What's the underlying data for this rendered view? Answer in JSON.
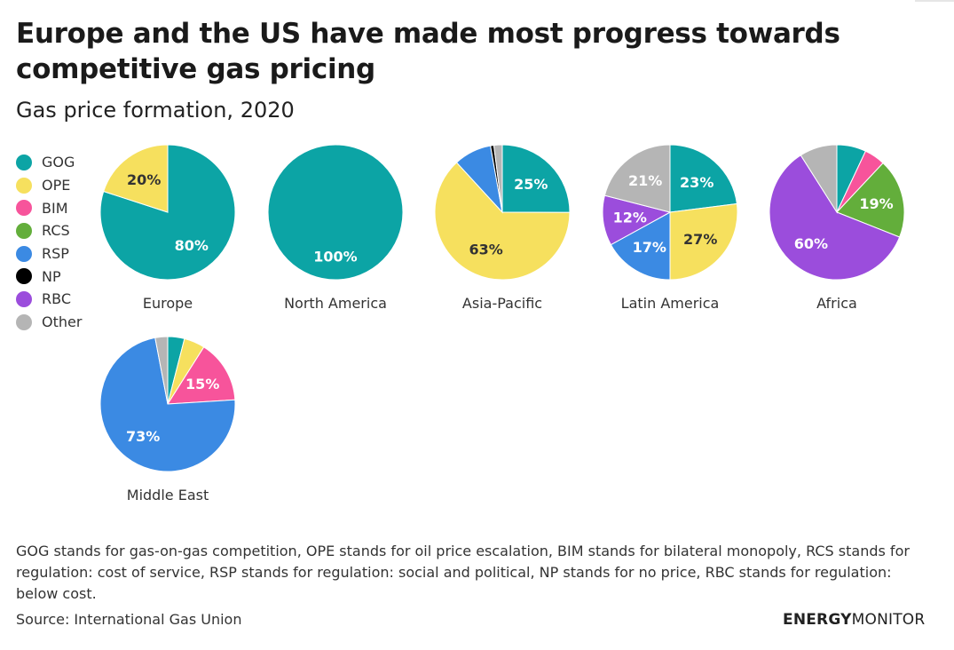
{
  "title": "Europe and the US have made most progress towards competitive gas pricing",
  "subtitle": "Gas price formation, 2020",
  "footnote": "GOG stands for gas-on-gas competition, OPE stands for oil price escalation, BIM stands for bilateral monopoly, RCS stands for regulation: cost of service, RSP stands for regulation: social and political, NP stands for no price, RBC stands for regulation: below cost.",
  "source": "Source: International Gas Union",
  "brand": {
    "part1": "ENERGY",
    "part2": "MONITOR"
  },
  "colors": {
    "GOG": "#0ca4a5",
    "OPE": "#f6e05e",
    "BIM": "#f7549b",
    "RCS": "#63ae3b",
    "RSP": "#3b8ae3",
    "NP": "#000000",
    "RBC": "#9b4ddc",
    "Other": "#b5b5b5"
  },
  "legend": [
    {
      "key": "GOG",
      "label": "GOG"
    },
    {
      "key": "OPE",
      "label": "OPE"
    },
    {
      "key": "BIM",
      "label": "BIM"
    },
    {
      "key": "RCS",
      "label": "RCS"
    },
    {
      "key": "RSP",
      "label": "RSP"
    },
    {
      "key": "NP",
      "label": "NP"
    },
    {
      "key": "RBC",
      "label": "RBC"
    },
    {
      "key": "Other",
      "label": "Other"
    }
  ],
  "chart_data": {
    "type": "pie",
    "title": "Gas price formation, 2020",
    "categories": [
      "GOG",
      "OPE",
      "BIM",
      "RCS",
      "RSP",
      "NP",
      "RBC",
      "Other"
    ],
    "series": [
      {
        "name": "Europe",
        "slices": [
          {
            "cat": "GOG",
            "value": 80,
            "label": "80%"
          },
          {
            "cat": "OPE",
            "value": 20,
            "label": "20%"
          }
        ]
      },
      {
        "name": "North America",
        "slices": [
          {
            "cat": "GOG",
            "value": 100,
            "label": "100%"
          }
        ]
      },
      {
        "name": "Asia-Pacific",
        "slices": [
          {
            "cat": "GOG",
            "value": 25,
            "label": "25%"
          },
          {
            "cat": "OPE",
            "value": 63,
            "label": "63%"
          },
          {
            "cat": "RSP",
            "value": 9,
            "label": ""
          },
          {
            "cat": "NP",
            "value": 0.8,
            "label": ""
          },
          {
            "cat": "Other",
            "value": 2,
            "label": ""
          }
        ]
      },
      {
        "name": "Latin America",
        "slices": [
          {
            "cat": "GOG",
            "value": 23,
            "label": "23%"
          },
          {
            "cat": "OPE",
            "value": 27,
            "label": "27%"
          },
          {
            "cat": "RSP",
            "value": 17,
            "label": "17%"
          },
          {
            "cat": "RBC",
            "value": 12,
            "label": "12%"
          },
          {
            "cat": "Other",
            "value": 21,
            "label": "21%"
          }
        ]
      },
      {
        "name": "Africa",
        "slices": [
          {
            "cat": "GOG",
            "value": 7,
            "label": ""
          },
          {
            "cat": "BIM",
            "value": 5,
            "label": ""
          },
          {
            "cat": "RCS",
            "value": 19,
            "label": "19%"
          },
          {
            "cat": "RBC",
            "value": 60,
            "label": "60%"
          },
          {
            "cat": "Other",
            "value": 9,
            "label": ""
          }
        ]
      },
      {
        "name": "Middle East",
        "slices": [
          {
            "cat": "GOG",
            "value": 4,
            "label": ""
          },
          {
            "cat": "OPE",
            "value": 5,
            "label": ""
          },
          {
            "cat": "BIM",
            "value": 15,
            "label": "15%"
          },
          {
            "cat": "RSP",
            "value": 73,
            "label": "73%"
          },
          {
            "cat": "Other",
            "value": 3,
            "label": ""
          }
        ]
      }
    ]
  }
}
